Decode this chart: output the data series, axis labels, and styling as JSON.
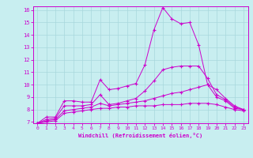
{
  "xlabel": "Windchill (Refroidissement éolien,°C)",
  "background_color": "#c8eef0",
  "grid_color": "#a8d8dc",
  "line_color": "#cc00cc",
  "x_data": [
    0,
    1,
    2,
    3,
    4,
    5,
    6,
    7,
    8,
    9,
    10,
    11,
    12,
    13,
    14,
    15,
    16,
    17,
    18,
    19,
    20,
    21,
    22,
    23
  ],
  "line1": [
    6.9,
    7.4,
    7.4,
    8.7,
    8.7,
    8.6,
    8.6,
    10.4,
    9.6,
    9.7,
    9.9,
    10.1,
    11.6,
    14.4,
    16.2,
    15.3,
    14.9,
    15.0,
    13.2,
    10.0,
    9.0,
    8.7,
    8.1,
    8.0
  ],
  "line2": [
    6.9,
    7.2,
    7.3,
    8.3,
    8.3,
    8.3,
    8.4,
    9.2,
    8.4,
    8.5,
    8.7,
    8.9,
    9.5,
    10.3,
    11.2,
    11.4,
    11.5,
    11.5,
    11.5,
    10.5,
    9.2,
    8.8,
    8.2,
    8.0
  ],
  "line3": [
    6.9,
    7.1,
    7.2,
    7.9,
    8.0,
    8.1,
    8.2,
    8.5,
    8.3,
    8.4,
    8.5,
    8.6,
    8.7,
    8.9,
    9.1,
    9.3,
    9.4,
    9.6,
    9.8,
    10.0,
    9.6,
    8.9,
    8.3,
    8.0
  ],
  "line4": [
    6.9,
    7.0,
    7.1,
    7.7,
    7.8,
    7.9,
    8.0,
    8.1,
    8.1,
    8.2,
    8.2,
    8.3,
    8.3,
    8.3,
    8.4,
    8.4,
    8.4,
    8.5,
    8.5,
    8.5,
    8.4,
    8.2,
    8.0,
    7.9
  ],
  "ylim": [
    7,
    16
  ],
  "xlim": [
    0,
    23
  ],
  "yticks": [
    7,
    8,
    9,
    10,
    11,
    12,
    13,
    14,
    15,
    16
  ],
  "xticks": [
    0,
    1,
    2,
    3,
    4,
    5,
    6,
    7,
    8,
    9,
    10,
    11,
    12,
    13,
    14,
    15,
    16,
    17,
    18,
    19,
    20,
    21,
    22,
    23
  ]
}
